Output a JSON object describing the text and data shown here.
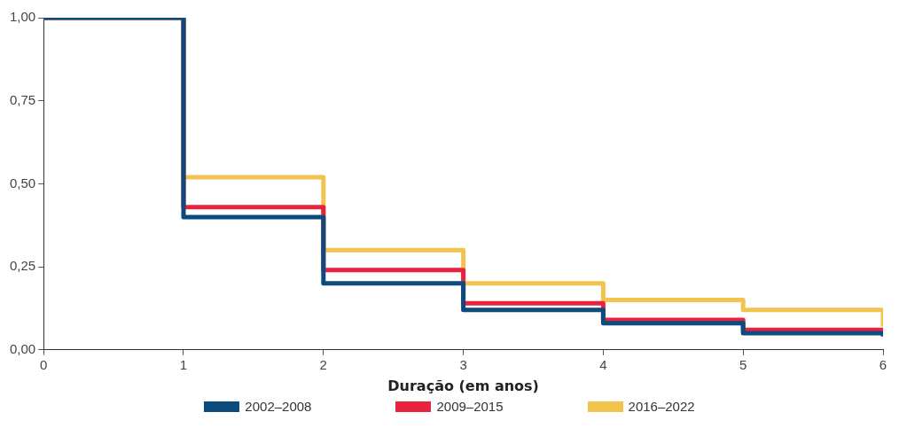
{
  "chart_data": {
    "type": "step",
    "xlabel": "Duração (em anos)",
    "x": [
      0,
      1,
      2,
      3,
      4,
      5,
      6
    ],
    "xlim": [
      0,
      6
    ],
    "xticks": [
      0,
      1,
      2,
      3,
      4,
      5,
      6
    ],
    "ylim": [
      0,
      1
    ],
    "yticks": [
      {
        "value": 0,
        "label": "0,00"
      },
      {
        "value": 0.25,
        "label": "0,25"
      },
      {
        "value": 0.5,
        "label": "0,50"
      },
      {
        "value": 0.75,
        "label": "0,75"
      },
      {
        "value": 1,
        "label": "1,00"
      }
    ],
    "grid": false,
    "legend": "bottom",
    "marker": "none",
    "line_style": "solid",
    "series": [
      {
        "name": "2002–2008",
        "color": "#0d4a7e",
        "values": [
          1,
          0.4,
          0.2,
          0.12,
          0.08,
          0.05,
          0.04
        ]
      },
      {
        "name": "2009–2015",
        "color": "#e8233f",
        "values": [
          1,
          0.43,
          0.24,
          0.14,
          0.09,
          0.06,
          0.05
        ]
      },
      {
        "name": "2016–2022",
        "color": "#f2c44e",
        "values": [
          1,
          0.52,
          0.3,
          0.2,
          0.15,
          0.12,
          0.07
        ]
      }
    ]
  }
}
